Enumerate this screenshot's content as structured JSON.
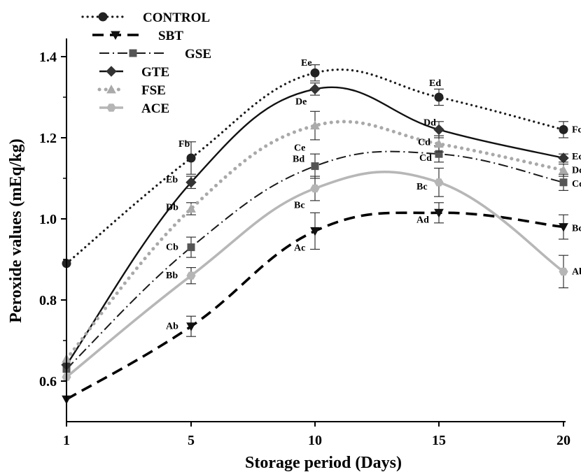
{
  "chart_data": {
    "type": "line",
    "xlabel": "Storage period (Days)",
    "ylabel": "Peroxide values (mEq/kg)",
    "x": [
      1,
      5,
      10,
      15,
      20
    ],
    "xticks": [
      "1",
      "5",
      "10",
      "15",
      "20"
    ],
    "ylim": [
      0.5,
      1.4
    ],
    "yticks": [
      "0.6",
      "0.8",
      "1.0",
      "1.2",
      "1.4"
    ],
    "legend_position": "top-left",
    "series": [
      {
        "name": "CONTROL",
        "style": "dotted",
        "marker": "circle",
        "color": "#222222",
        "values": [
          0.89,
          1.15,
          1.36,
          1.3,
          1.22
        ],
        "errors": [
          0,
          0.04,
          0.02,
          0.02,
          0.02
        ],
        "labels": [
          "",
          "Fb",
          "Ee",
          "Ed",
          "Fc"
        ]
      },
      {
        "name": "SBT",
        "style": "dashed",
        "marker": "triangle-down",
        "color": "#111111",
        "values": [
          0.555,
          0.735,
          0.97,
          1.015,
          0.98
        ],
        "errors": [
          0,
          0.025,
          0.045,
          0.025,
          0.03
        ],
        "labels": [
          "",
          "Ab",
          "Ac",
          "Ad",
          "Bc"
        ]
      },
      {
        "name": "GSE",
        "style": "dashdot",
        "marker": "square",
        "color": "#555555",
        "values": [
          0.63,
          0.93,
          1.13,
          1.16,
          1.09
        ],
        "errors": [
          0,
          0.025,
          0.03,
          0.02,
          0.02
        ],
        "labels": [
          "",
          "Cb",
          "Bd",
          "Cd",
          "Cc"
        ]
      },
      {
        "name": "GTE",
        "style": "solid",
        "marker": "diamond",
        "color": "#333333",
        "values": [
          0.64,
          1.09,
          1.32,
          1.22,
          1.15
        ],
        "errors": [
          0,
          0.015,
          0.015,
          0.02,
          0.01
        ],
        "labels": [
          "",
          "Eb",
          "De",
          "Dd",
          "Ec"
        ]
      },
      {
        "name": "FSE",
        "style": "dotted-gray",
        "marker": "triangle-up",
        "color": "#aaaaaa",
        "values": [
          0.655,
          1.025,
          1.23,
          1.185,
          1.12
        ],
        "errors": [
          0,
          0.015,
          0.035,
          0.02,
          0.015
        ],
        "labels": [
          "",
          "Db",
          "Ce",
          "Cd",
          "Dc"
        ]
      },
      {
        "name": "ACE",
        "style": "solid-gray",
        "marker": "hexagon",
        "color": "#b5b5b5",
        "values": [
          0.61,
          0.86,
          1.075,
          1.09,
          0.87
        ],
        "errors": [
          0,
          0.02,
          0.03,
          0.035,
          0.04
        ],
        "labels": [
          "",
          "Bb",
          "Bc",
          "Bc",
          "Ab"
        ]
      }
    ]
  }
}
